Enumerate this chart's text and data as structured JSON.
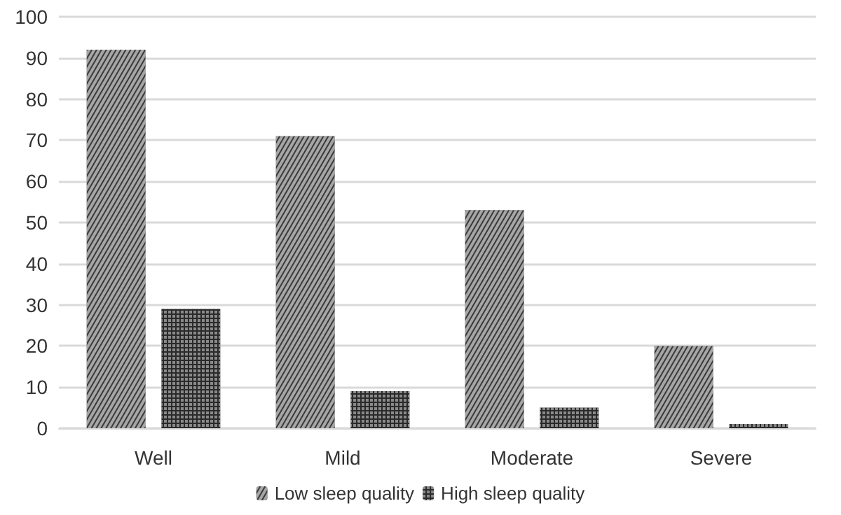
{
  "chart_data": {
    "type": "bar",
    "categories": [
      "Well",
      "Mild",
      "Moderate",
      "Severe"
    ],
    "series": [
      {
        "name": "Low sleep quality",
        "color": "#3a3a3a",
        "values": [
          92,
          71,
          53,
          20
        ]
      },
      {
        "name": "High sleep quality",
        "color": "#2a2a2a",
        "values": [
          29,
          9,
          5,
          1
        ]
      }
    ],
    "ylim": [
      0,
      100
    ],
    "yticks": [
      0,
      10,
      20,
      30,
      40,
      50,
      60,
      70,
      80,
      90,
      100
    ],
    "grid": "y",
    "legend": "bottom"
  }
}
